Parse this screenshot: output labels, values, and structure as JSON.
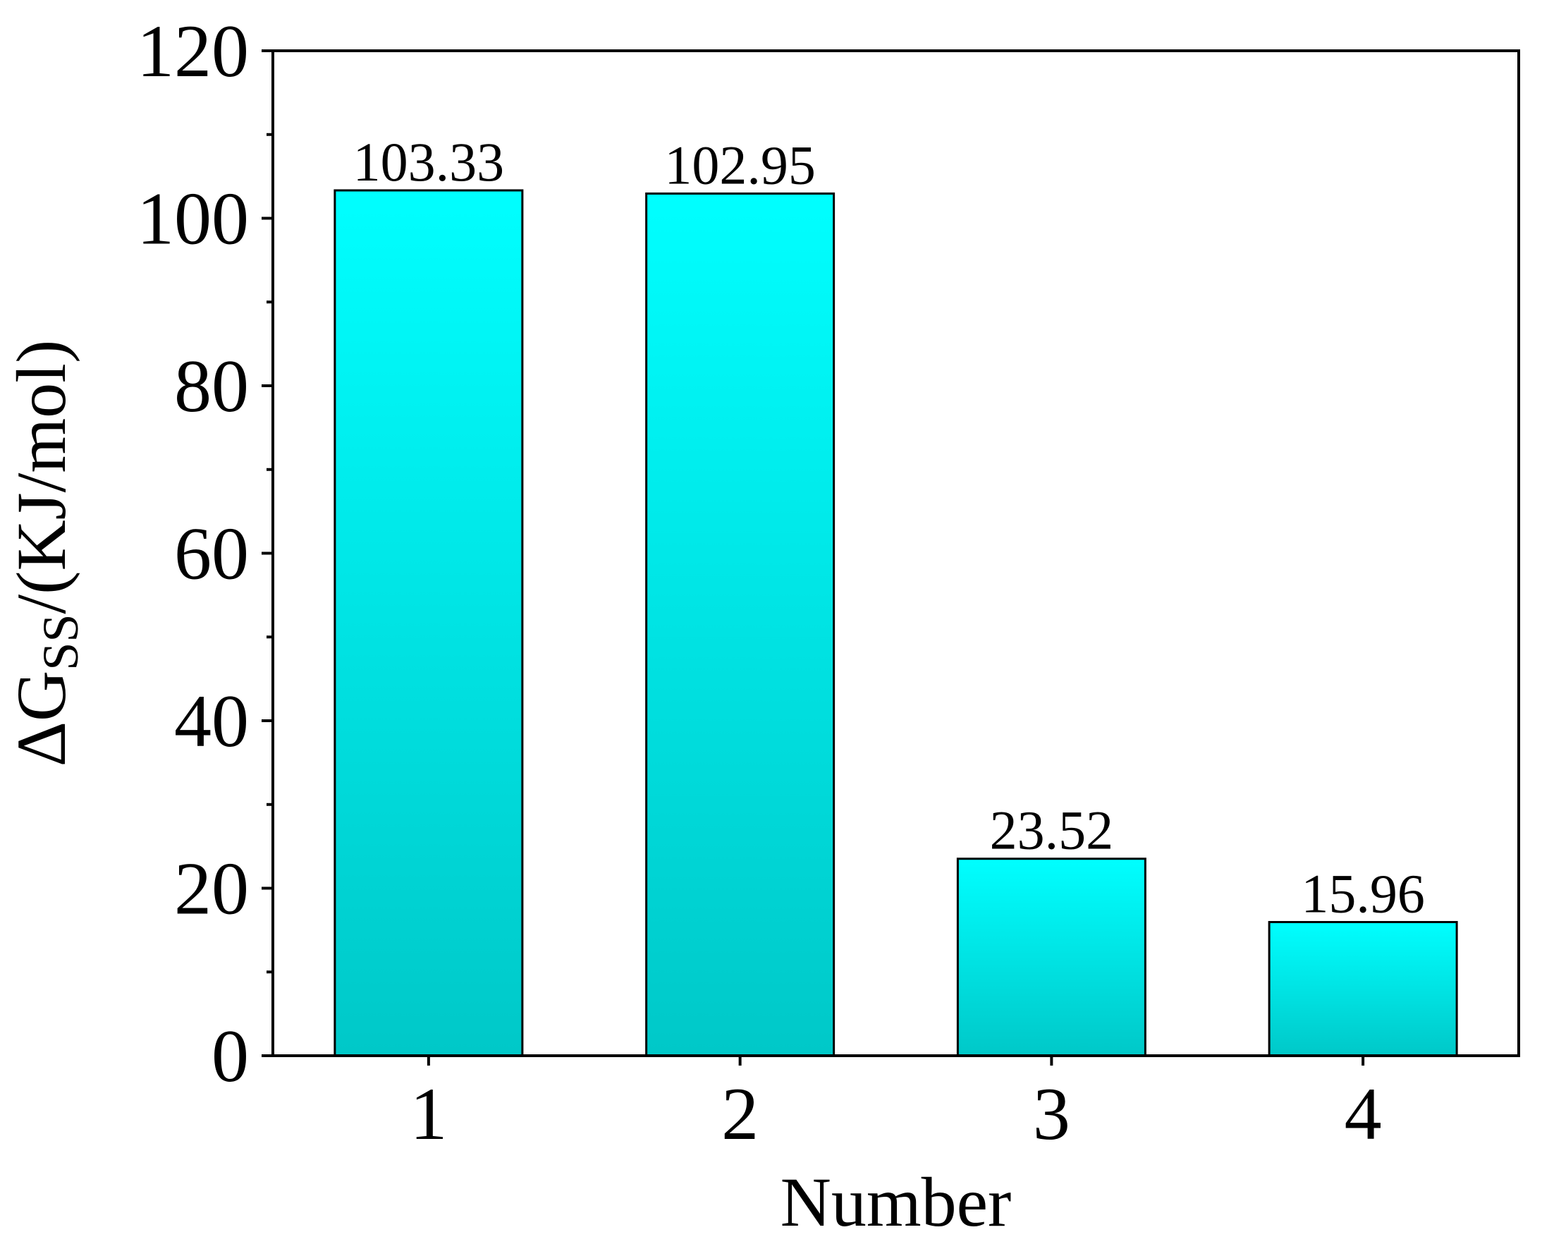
{
  "chart_data": {
    "type": "bar",
    "categories": [
      "1",
      "2",
      "3",
      "4"
    ],
    "values": [
      103.33,
      102.95,
      23.52,
      15.96
    ],
    "value_labels": [
      "103.33",
      "102.95",
      "23.52",
      "15.96"
    ],
    "title": "",
    "xlabel": "Number",
    "ylabel": {
      "prefix": "ΔG",
      "subscript": "SS",
      "suffix": "/(KJ/mol)"
    },
    "ylim": [
      0,
      120
    ],
    "yticks": [
      0,
      20,
      40,
      60,
      80,
      100,
      120
    ],
    "ytick_labels": [
      "0",
      "20",
      "40",
      "60",
      "80",
      "100",
      "120"
    ],
    "y_minor_step": 10,
    "grid": false,
    "legend": "none",
    "colors": {
      "bar_top": "#00ffff",
      "bar_bottom": "#00c8c8",
      "bar_edge": "#000000"
    }
  }
}
